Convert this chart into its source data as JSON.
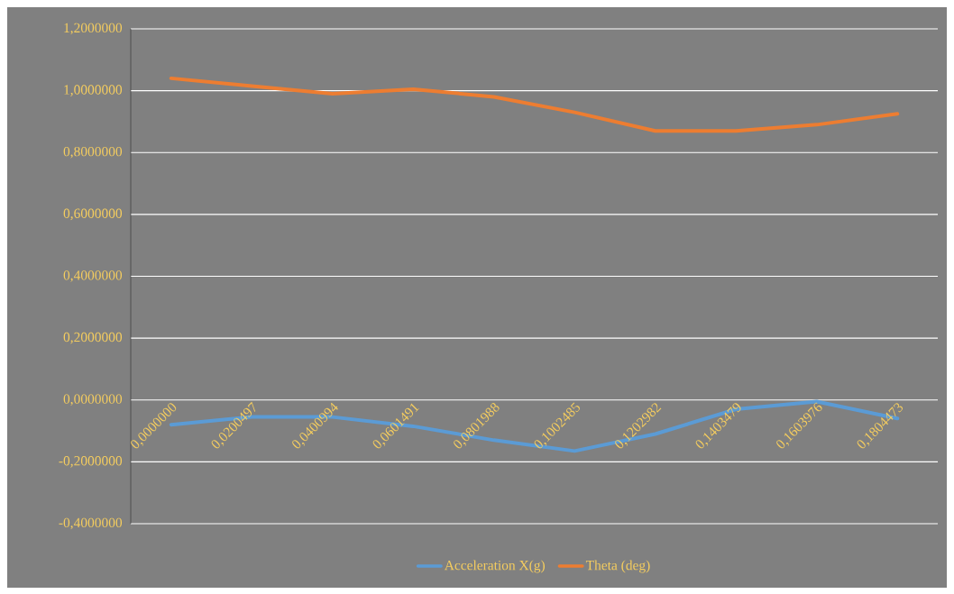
{
  "chart_data": {
    "type": "line",
    "categories": [
      "0,0000000",
      "0,0200497",
      "0,0400994",
      "0,0601491",
      "0,0801988",
      "0,1002485",
      "0,1202982",
      "0,1403479",
      "0,1603976",
      "0,1804473"
    ],
    "series": [
      {
        "name": "Acceleration X(g)",
        "color": "#5b9bd5",
        "values": [
          -0.08,
          -0.055,
          -0.055,
          -0.085,
          -0.13,
          -0.165,
          -0.11,
          -0.03,
          -0.005,
          -0.06
        ]
      },
      {
        "name": "Theta (deg)",
        "color": "#ed7d31",
        "values": [
          1.04,
          1.015,
          0.99,
          1.005,
          0.98,
          0.93,
          0.87,
          0.87,
          0.89,
          0.925
        ]
      }
    ],
    "ylim": [
      -0.4,
      1.2
    ],
    "yticks": [
      {
        "value": -0.4,
        "label": "-0,4000000"
      },
      {
        "value": -0.2,
        "label": "-0,2000000"
      },
      {
        "value": 0,
        "label": "0,0000000"
      },
      {
        "value": 0.2,
        "label": "0,2000000"
      },
      {
        "value": 0.4,
        "label": "0,4000000"
      },
      {
        "value": 0.6,
        "label": "0,6000000"
      },
      {
        "value": 0.8,
        "label": "0,8000000"
      },
      {
        "value": 1.0,
        "label": "1,0000000"
      },
      {
        "value": 1.2,
        "label": "1,2000000"
      }
    ],
    "grid": "y",
    "legend": "bottom"
  }
}
